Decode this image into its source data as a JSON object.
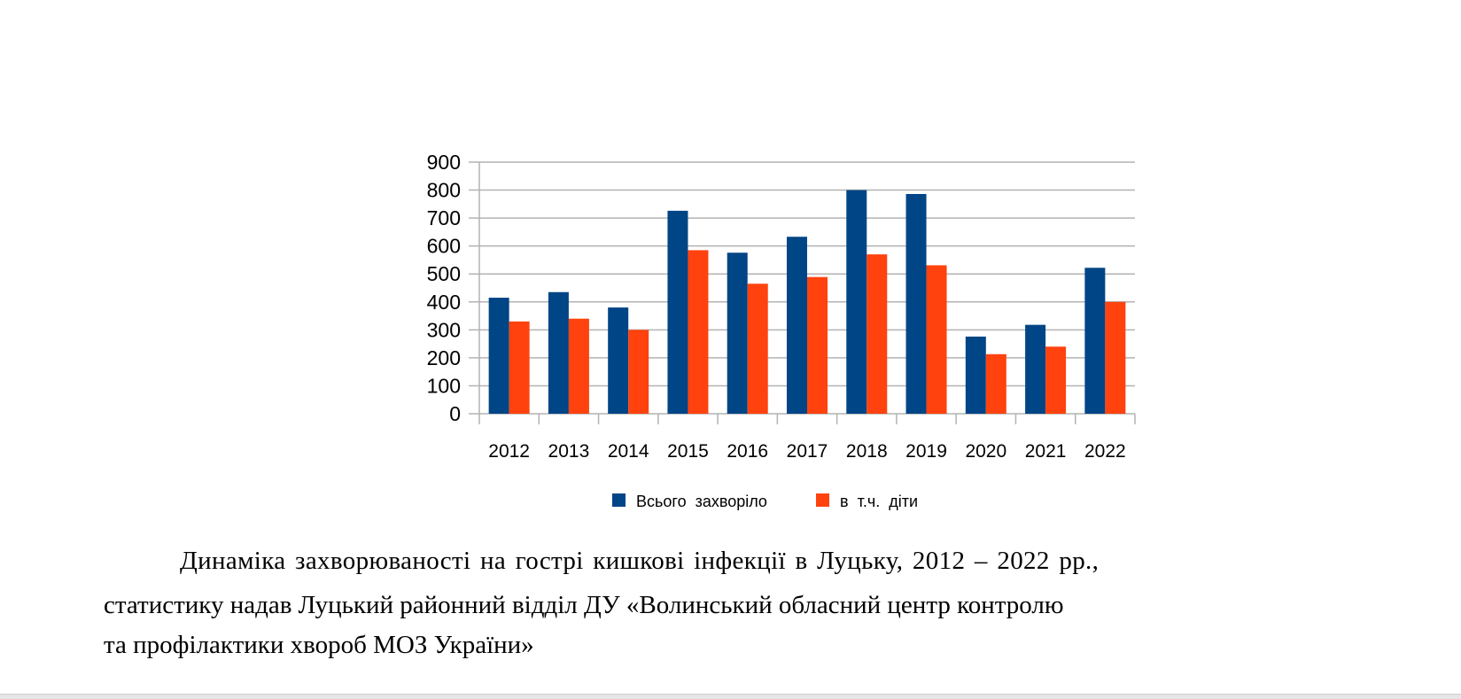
{
  "chart_data": {
    "type": "bar",
    "categories": [
      "2012",
      "2013",
      "2014",
      "2015",
      "2016",
      "2017",
      "2018",
      "2019",
      "2020",
      "2021",
      "2022"
    ],
    "series": [
      {
        "name": "Всього  захворіло",
        "color": "#004586",
        "values": [
          415,
          435,
          380,
          726,
          576,
          633,
          800,
          786,
          276,
          318,
          522
        ]
      },
      {
        "name": "в  т.ч.  діти",
        "color": "#ff420e",
        "values": [
          330,
          340,
          300,
          585,
          465,
          489,
          570,
          531,
          213,
          240,
          400
        ]
      }
    ],
    "ylim": [
      0,
      900
    ],
    "yticks": [
      "0",
      "100",
      "200",
      "300",
      "400",
      "500",
      "600",
      "700",
      "800",
      "900"
    ],
    "grid": true,
    "legend": "bottom"
  },
  "caption": {
    "line1": "Динаміка захворюваності на гострі кишкові інфекції в Луцьку, 2012 – 2022 рр.,",
    "line2": "статистику надав Луцький районний відділ ДУ «Волинський обласний центр контролю",
    "line3": "та профілактики хвороб МОЗ України»"
  }
}
